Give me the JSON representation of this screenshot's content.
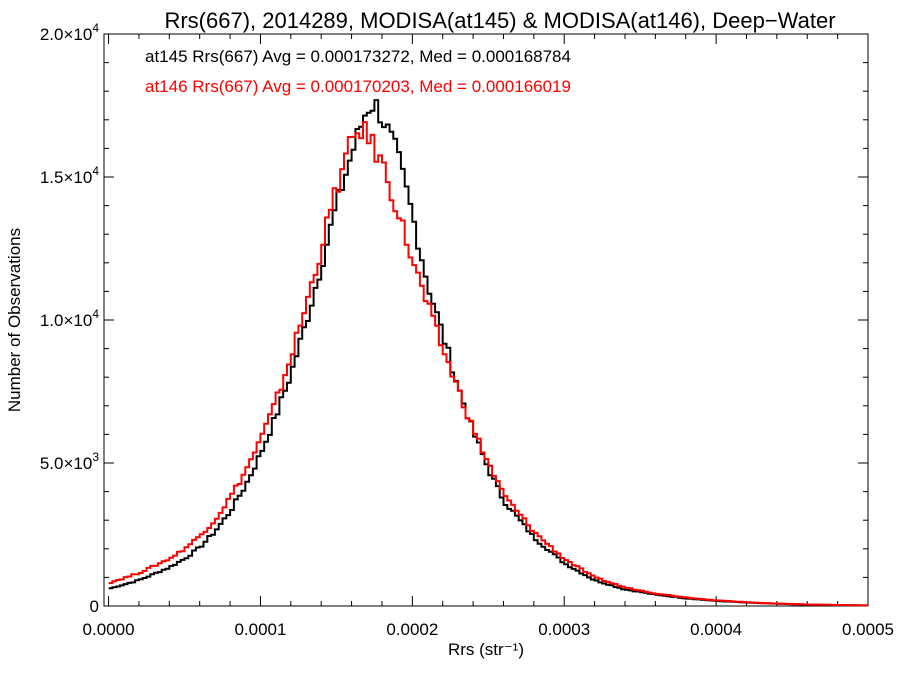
{
  "chart_data": {
    "type": "line",
    "title": "Rrs(667), 2014289, MODISA(at145) & MODISA(at146), Deep−Water",
    "xlabel": "Rrs (str⁻¹)",
    "ylabel": "Number of Observations",
    "xlim": [
      -3e-06,
      0.0005
    ],
    "ylim": [
      0,
      20000
    ],
    "grid": false,
    "x_ticks": [
      {
        "value": 0.0,
        "label": "0.0000"
      },
      {
        "value": 0.0001,
        "label": "0.0001"
      },
      {
        "value": 0.0002,
        "label": "0.0002"
      },
      {
        "value": 0.0003,
        "label": "0.0003"
      },
      {
        "value": 0.0004,
        "label": "0.0004"
      },
      {
        "value": 0.0005,
        "label": "0.0005"
      }
    ],
    "y_ticks": [
      {
        "value": 0,
        "mant": "0",
        "exp": ""
      },
      {
        "value": 5000,
        "mant": "5.0×10",
        "exp": "3"
      },
      {
        "value": 10000,
        "mant": "1.0×10",
        "exp": "4"
      },
      {
        "value": 15000,
        "mant": "1.5×10",
        "exp": "4"
      },
      {
        "value": 20000,
        "mant": "2.0×10",
        "exp": "4"
      }
    ],
    "annotations": [
      {
        "text": "at145 Rrs(667) Avg = 0.000173272, Med = 0.000168784",
        "color": "#000000"
      },
      {
        "text": "at146 Rrs(667) Avg = 0.000170203, Med = 0.000166019",
        "color": "#ff0000"
      }
    ],
    "series": [
      {
        "color": "#000000",
        "step": true,
        "x": [
          0.0,
          2e-05,
          4e-05,
          5e-05,
          6e-05,
          7e-05,
          8e-05,
          9e-05,
          0.0001,
          0.00011,
          0.00012,
          0.00013,
          0.00014,
          0.00015,
          0.00016,
          0.00017,
          0.000175,
          0.00018,
          0.00019,
          0.0002,
          0.00021,
          0.00022,
          0.00023,
          0.00024,
          0.00025,
          0.00026,
          0.00028,
          0.0003,
          0.00032,
          0.00034,
          0.00036,
          0.00038,
          0.0004,
          0.00042,
          0.00044,
          0.00046,
          0.00048,
          0.0005
        ],
        "y": [
          600,
          900,
          1350,
          1650,
          2050,
          2600,
          3300,
          4200,
          5300,
          6600,
          8100,
          9900,
          11900,
          14000,
          15800,
          17400,
          17600,
          17100,
          15800,
          13700,
          11300,
          9500,
          7700,
          6100,
          4800,
          3700,
          2400,
          1500,
          900,
          580,
          400,
          270,
          180,
          120,
          80,
          50,
          30,
          20
        ]
      },
      {
        "color": "#ff0000",
        "step": true,
        "x": [
          0.0,
          2e-05,
          4e-05,
          5e-05,
          6e-05,
          7e-05,
          8e-05,
          9e-05,
          0.0001,
          0.00011,
          0.00012,
          0.00013,
          0.00014,
          0.00015,
          0.00016,
          0.000165,
          0.00017,
          0.00018,
          0.00019,
          0.0002,
          0.00021,
          0.00022,
          0.00023,
          0.00024,
          0.00025,
          0.00026,
          0.00028,
          0.0003,
          0.00032,
          0.00034,
          0.00036,
          0.00038,
          0.0004,
          0.00042,
          0.00044,
          0.00046,
          0.00048,
          0.0005
        ],
        "y": [
          800,
          1150,
          1650,
          2000,
          2450,
          3000,
          3800,
          4700,
          5800,
          7100,
          8700,
          10500,
          12500,
          14600,
          16200,
          16700,
          16500,
          15500,
          13900,
          12100,
          10500,
          9000,
          7600,
          6200,
          5000,
          3900,
          2600,
          1650,
          1000,
          650,
          440,
          300,
          200,
          130,
          85,
          55,
          35,
          20
        ]
      }
    ]
  }
}
